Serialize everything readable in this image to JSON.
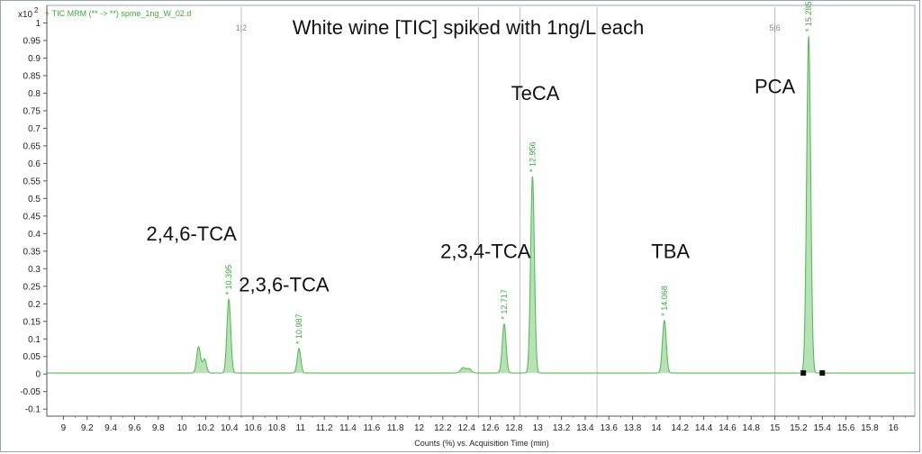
{
  "chart_data": {
    "type": "line",
    "title": "White wine [TIC] spiked with 1ng/L each",
    "trace_label": "+ TIC MRM (** -> **) spme_1ng_W_02.d",
    "y_scale_label": "x10",
    "y_scale_exponent": "2",
    "xlabel": "Counts (%) vs. Acquisition Time (min)",
    "xlim": [
      8.86,
      16.18
    ],
    "ylim": [
      -0.12,
      1.05
    ],
    "x_ticks": [
      9,
      9.2,
      9.4,
      9.6,
      9.8,
      10,
      10.2,
      10.4,
      10.6,
      10.8,
      11,
      11.2,
      11.4,
      11.6,
      11.8,
      12,
      12.2,
      12.4,
      12.6,
      12.8,
      13,
      13.2,
      13.4,
      13.6,
      13.8,
      14,
      14.2,
      14.4,
      14.6,
      14.8,
      15,
      15.2,
      15.4,
      15.6,
      15.8,
      16
    ],
    "x_tick_labels": [
      "9",
      "9.2",
      "9.4",
      "9.6",
      "9.8",
      "10",
      "10.2",
      "10.4",
      "10.6",
      "10.8",
      "11",
      "11.2",
      "11.4",
      "11.6",
      "11.8",
      "12",
      "12.2",
      "12.4",
      "12.6",
      "12.8",
      "13",
      "13.2",
      "13.4",
      "13.6",
      "13.8",
      "14",
      "14.2",
      "14.4",
      "14.6",
      "14.8",
      "15",
      "15.2",
      "15.4",
      "15.6",
      "15.8",
      "16"
    ],
    "y_ticks": [
      -0.1,
      -0.05,
      0,
      0.05,
      0.1,
      0.15,
      0.2,
      0.25,
      0.3,
      0.35,
      0.4,
      0.45,
      0.5,
      0.55,
      0.6,
      0.65,
      0.7,
      0.75,
      0.8,
      0.85,
      0.9,
      0.95,
      1
    ],
    "y_tick_labels": [
      "-0.1",
      "-0.05",
      "0",
      "0.05",
      "0.1",
      "0.15",
      "0.2",
      "0.25",
      "0.3",
      "0.35",
      "0.4",
      "0.45",
      "0.5",
      "0.55",
      "0.6",
      "0.65",
      "0.7",
      "0.75",
      "0.8",
      "0.85",
      "0.9",
      "0.95",
      "1"
    ],
    "baseline": 0.003,
    "peaks": [
      {
        "rt": 10.14,
        "height": 0.075,
        "width": 0.016
      },
      {
        "rt": 10.19,
        "height": 0.04,
        "width": 0.016
      },
      {
        "rt": 10.395,
        "height": 0.21,
        "width": 0.016,
        "rt_label": "* 10.395"
      },
      {
        "rt": 10.987,
        "height": 0.07,
        "width": 0.015,
        "rt_label": "* 10.987"
      },
      {
        "rt": 12.37,
        "height": 0.015,
        "width": 0.02
      },
      {
        "rt": 12.42,
        "height": 0.012,
        "width": 0.02
      },
      {
        "rt": 12.717,
        "height": 0.14,
        "width": 0.016,
        "rt_label": "* 12.717"
      },
      {
        "rt": 12.956,
        "height": 0.56,
        "width": 0.016,
        "rt_label": "* 12.956"
      },
      {
        "rt": 14.068,
        "height": 0.15,
        "width": 0.016,
        "rt_label": "* 14.068"
      },
      {
        "rt": 15.285,
        "height": 0.96,
        "width": 0.017,
        "rt_label": "* 15.285"
      }
    ],
    "compound_labels": [
      {
        "text": "2,4,6-TCA",
        "rt": 10.08,
        "y": 0.38
      },
      {
        "text": "2,3,6-TCA",
        "rt": 10.86,
        "y": 0.235
      },
      {
        "text": "2,3,4-TCA",
        "rt": 12.56,
        "y": 0.33
      },
      {
        "text": "TeCA",
        "rt": 12.98,
        "y": 0.78
      },
      {
        "text": "TBA",
        "rt": 14.12,
        "y": 0.33
      },
      {
        "text": "PCA",
        "rt": 15.0,
        "y": 0.8
      }
    ],
    "window_markers": [
      {
        "x": 10.5,
        "label": "1|2"
      },
      {
        "x": 12.5,
        "label": ""
      },
      {
        "x": 12.85,
        "label": ""
      },
      {
        "x": 13.5,
        "label": ""
      },
      {
        "x": 15.0,
        "label": "5|6"
      }
    ],
    "integration_markers": [
      15.24,
      15.4
    ],
    "colors": {
      "trace": "#5cb85c",
      "fill": "#b6e2b6",
      "label": "#3aa83a",
      "marker": "#c9c9c9",
      "frame": "#8fa7c9"
    }
  }
}
